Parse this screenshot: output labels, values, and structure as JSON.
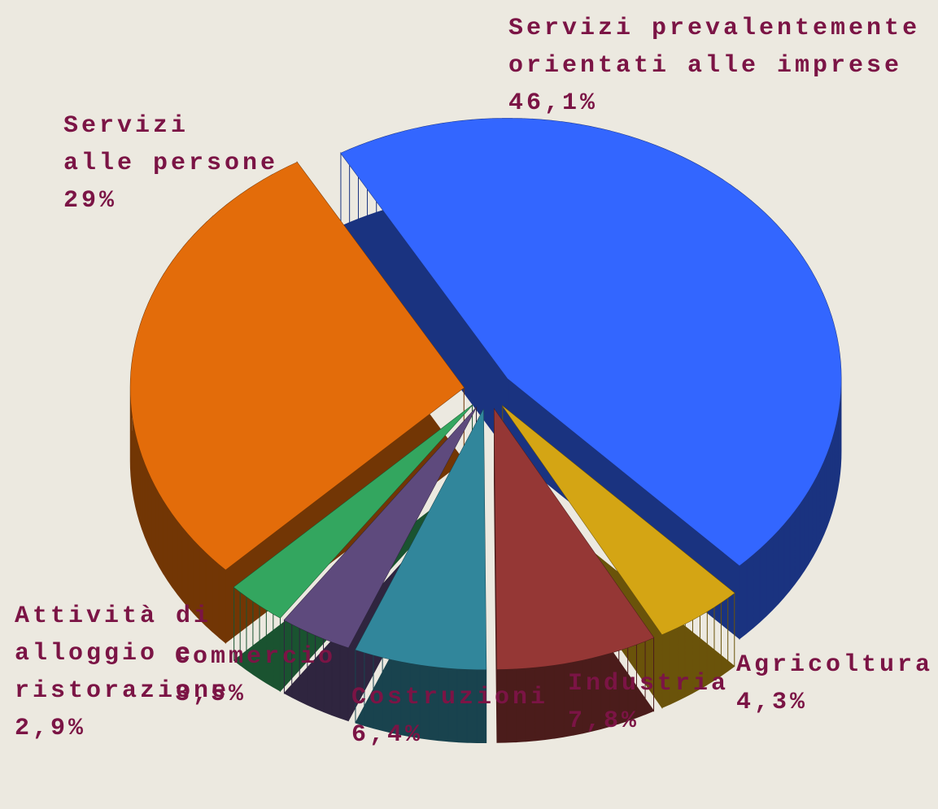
{
  "chart_data": {
    "type": "pie",
    "categories": [
      "Servizi prevalentemente\norientati alle imprese",
      "Agricoltura",
      "Industria",
      "Costruzioni",
      "Commercio",
      "Attività di\nalloggio e\nristorazione",
      "Servizi\nalle persone"
    ],
    "values": [
      46.1,
      4.3,
      7.8,
      6.4,
      3.5,
      2.9,
      29
    ],
    "value_labels": [
      "46,1%",
      "4,3%",
      "7,8%",
      "6,4%",
      "3,5%",
      "2,9%",
      "29%"
    ],
    "colors": [
      "#3366ff",
      "#d4a514",
      "#953735",
      "#31869b",
      "#5e4a7d",
      "#33a65f",
      "#e36c0a"
    ]
  }
}
